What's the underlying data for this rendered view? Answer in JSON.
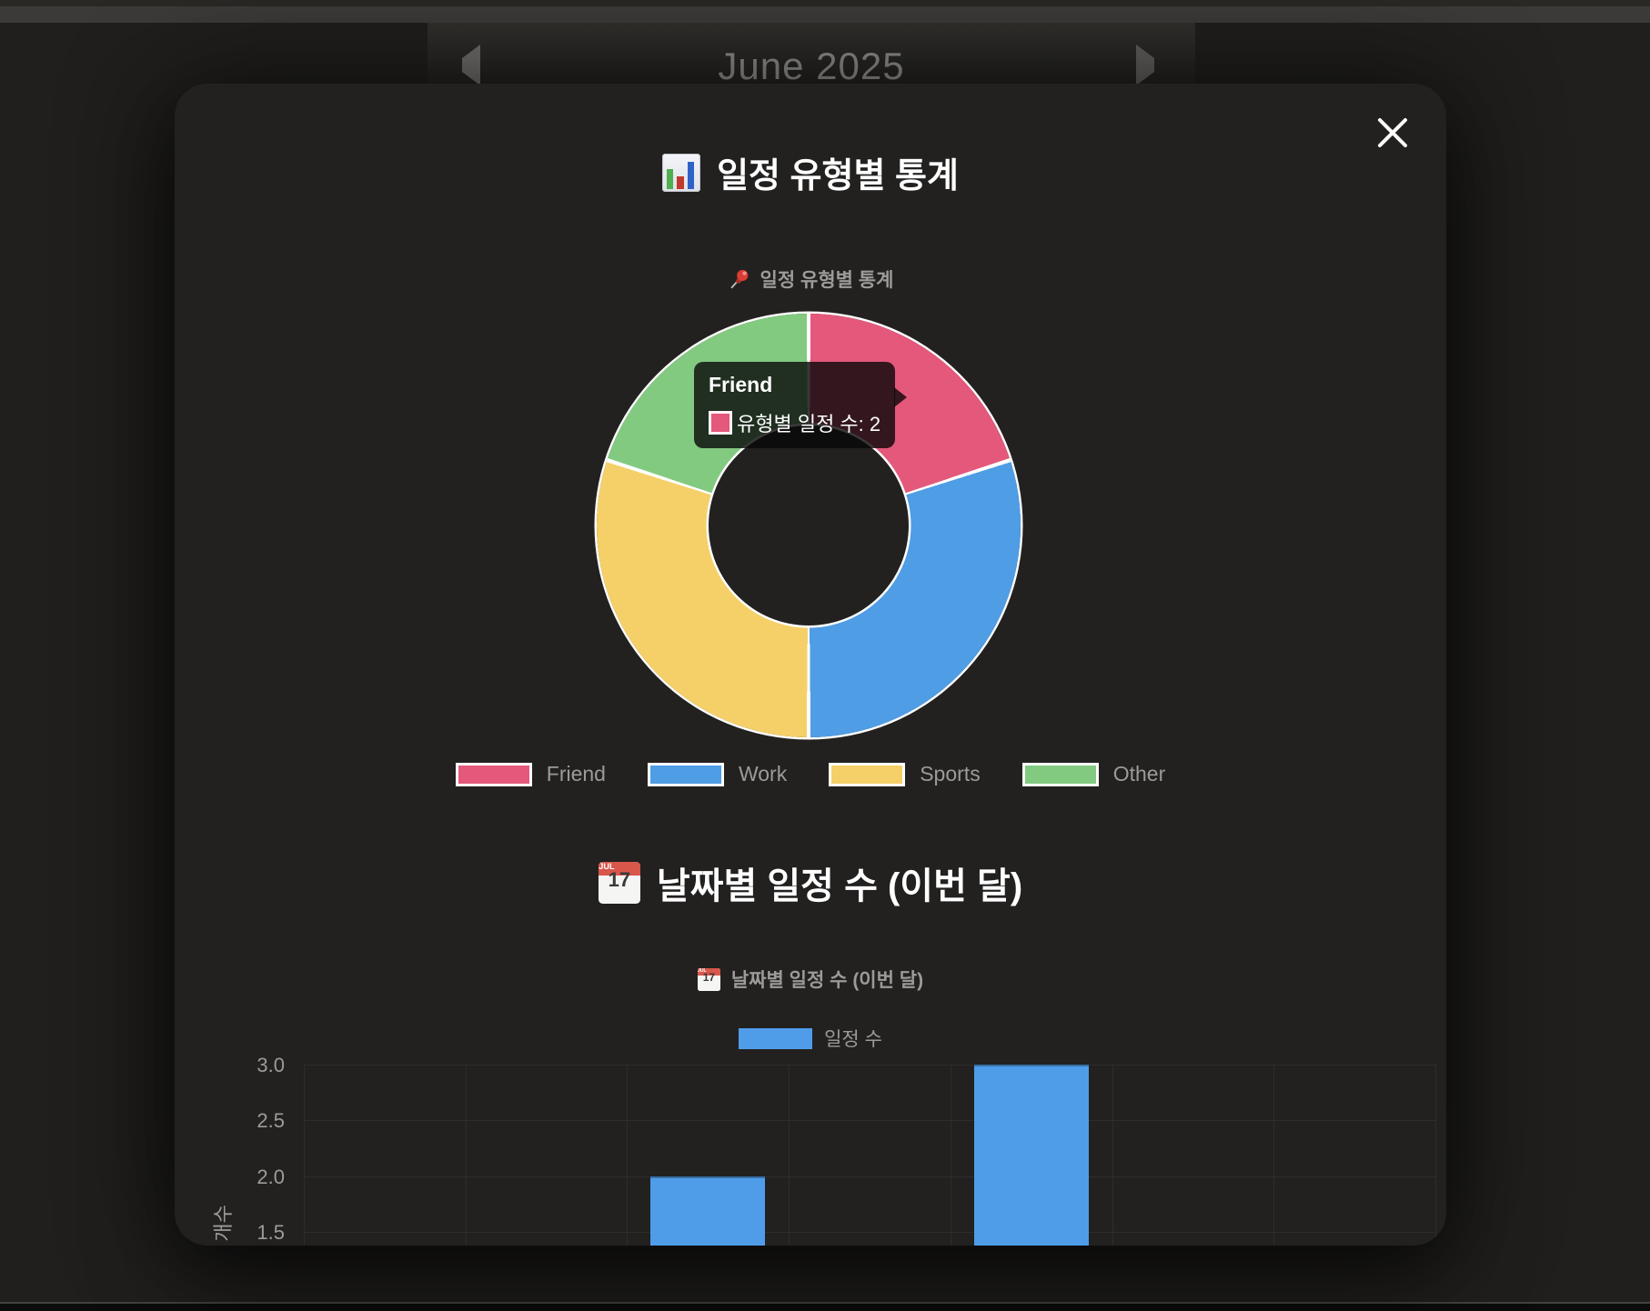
{
  "page": {
    "top_nav": {
      "month_title": "June 2025",
      "prev_icon": "left-triangle",
      "next_icon": "right-triangle"
    }
  },
  "modal": {
    "close_icon": "x-close",
    "icons": {
      "calendar_month": "JUL",
      "calendar_day": "17"
    },
    "donut_section": {
      "title": "일정 유형별 통계",
      "title_icon": "bar-chart-emoji",
      "chart_subtitle": "일정 유형별 통계",
      "chart_subtitle_icon": "pushpin-emoji",
      "tooltip": {
        "title": "Friend",
        "text": "유형별 일정 수: 2"
      },
      "legend": [
        {
          "label": "Friend",
          "color": "#e4587b"
        },
        {
          "label": "Work",
          "color": "#4f9de4"
        },
        {
          "label": "Sports",
          "color": "#f5d069"
        },
        {
          "label": "Other",
          "color": "#83ca81"
        }
      ]
    },
    "bar_section": {
      "title": "날짜별 일정 수 (이번 달)",
      "title_icon": "calendar-emoji",
      "chart_subtitle": "날짜별 일정 수 (이번 달)",
      "chart_subtitle_icon": "calendar-emoji",
      "legend_label": "일정 수",
      "y_ticks": [
        "3.0",
        "2.5",
        "2.0",
        "1.5"
      ],
      "y_axis_label_visible": "별 개수"
    }
  },
  "chart_data": [
    {
      "type": "pie",
      "variant": "doughnut",
      "title": "일정 유형별 통계",
      "labels": [
        "Friend",
        "Work",
        "Sports",
        "Other"
      ],
      "values": [
        2,
        3,
        3,
        2
      ],
      "colors": [
        "#e4587b",
        "#4f9de4",
        "#f5d069",
        "#83ca81"
      ],
      "border_color": "#ffffff",
      "legend_position": "bottom",
      "active_tooltip": {
        "label": "Friend",
        "text": "유형별 일정 수: 2",
        "value": 2
      }
    },
    {
      "type": "bar",
      "title": "날짜별 일정 수 (이번 달)",
      "categories": [
        "",
        "",
        "",
        "",
        "",
        "",
        ""
      ],
      "series": [
        {
          "name": "일정 수",
          "values": [
            null,
            null,
            2,
            null,
            3,
            null,
            null
          ]
        }
      ],
      "color": "#4f9de9",
      "ylabel": "별 개수",
      "y_ticks_visible": [
        3.0,
        2.5,
        2.0,
        1.5
      ],
      "ylim_visible": [
        1.3,
        3.0
      ],
      "grid": true,
      "legend_position": "top"
    }
  ]
}
